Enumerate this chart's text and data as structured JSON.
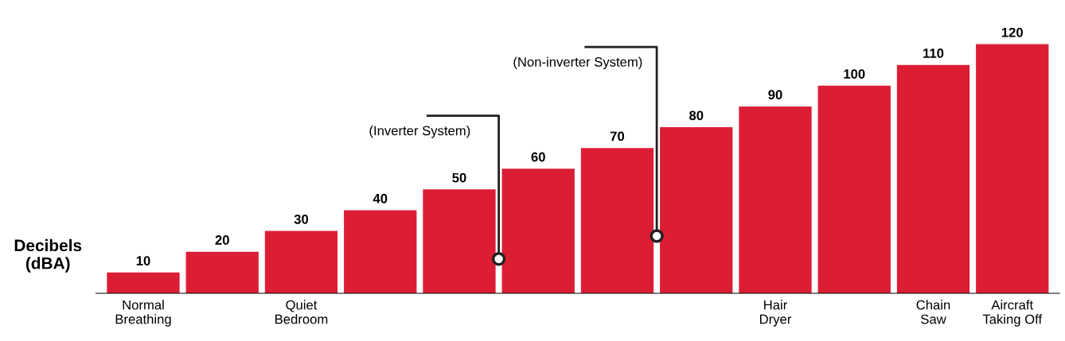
{
  "chart_data": {
    "type": "bar",
    "ylabel": "Decibels (dBA)",
    "categories": [
      "Normal Breathing",
      null,
      "Quiet Bedroom",
      null,
      null,
      null,
      null,
      null,
      "Hair Dryer",
      null,
      "Chain Saw",
      "Aircraft Taking Off"
    ],
    "values": [
      10,
      20,
      30,
      40,
      50,
      60,
      70,
      80,
      90,
      100,
      110,
      120
    ],
    "color": "#dc1e35",
    "data_labels": true,
    "annotations": [
      "(Inverter System)",
      "(Non-inverter System)"
    ]
  }
}
